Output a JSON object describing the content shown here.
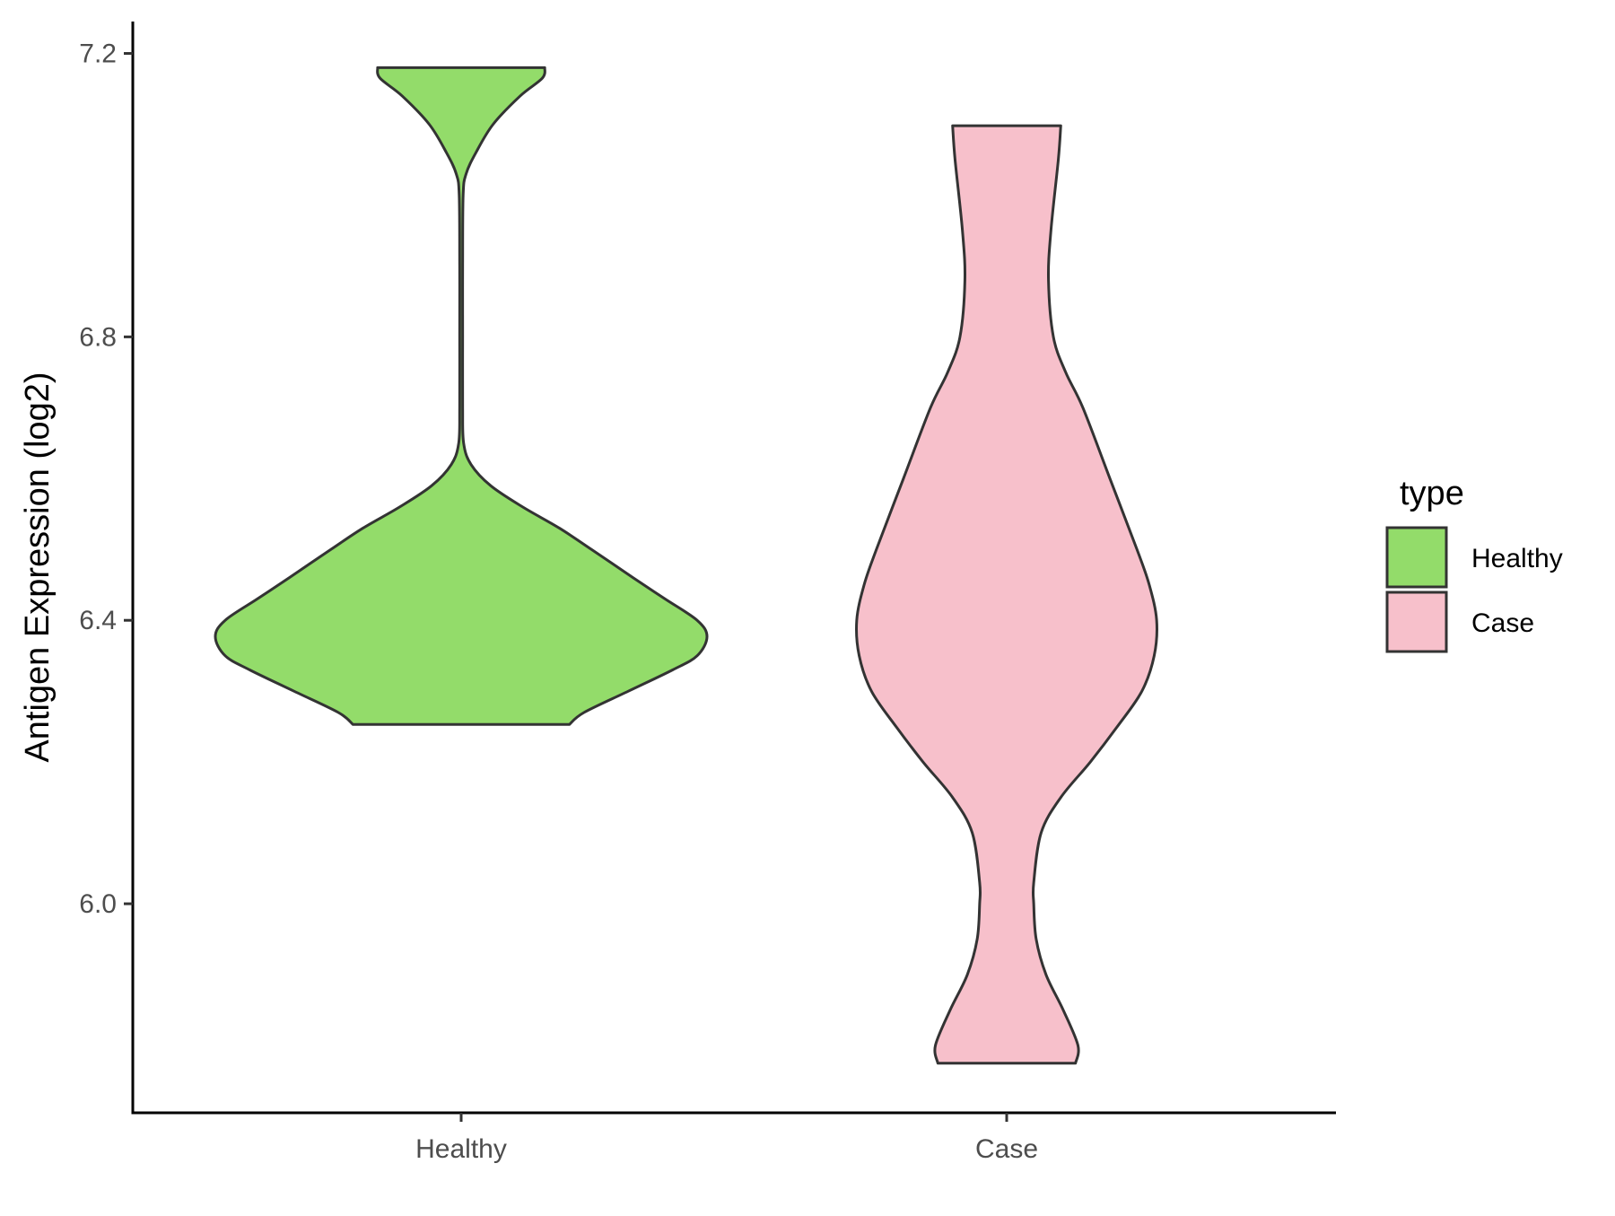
{
  "chart_data": {
    "type": "violin",
    "categories": [
      "Healthy",
      "Case"
    ],
    "ylabel": "Antigen Expression (log2)",
    "xlabel": "",
    "ylim": [
      5.705,
      7.245
    ],
    "yticks": [
      6.0,
      6.4,
      6.8,
      7.2
    ],
    "ytick_labels": [
      "6.0",
      "6.4",
      "6.8",
      "7.2"
    ],
    "grid": false,
    "legend": {
      "title": "type",
      "position": "right",
      "entries": [
        {
          "label": "Healthy",
          "color": "#93DC6A"
        },
        {
          "label": "Case",
          "color": "#F7C0CB"
        }
      ]
    },
    "series": [
      {
        "name": "Healthy",
        "color": "#93DC6A",
        "min": 6.253,
        "max": 7.18,
        "density": [
          [
            6.253,
            0.44
          ],
          [
            6.27,
            0.5
          ],
          [
            6.3,
            0.68
          ],
          [
            6.33,
            0.86
          ],
          [
            6.35,
            0.96
          ],
          [
            6.377,
            1.0
          ],
          [
            6.4,
            0.96
          ],
          [
            6.43,
            0.83
          ],
          [
            6.46,
            0.7
          ],
          [
            6.5,
            0.53
          ],
          [
            6.53,
            0.4
          ],
          [
            6.56,
            0.25
          ],
          [
            6.59,
            0.12
          ],
          [
            6.62,
            0.04
          ],
          [
            6.65,
            0.01
          ],
          [
            6.7,
            0.006
          ],
          [
            6.8,
            0.006
          ],
          [
            6.9,
            0.006
          ],
          [
            7.0,
            0.008
          ],
          [
            7.03,
            0.02
          ],
          [
            7.06,
            0.06
          ],
          [
            7.1,
            0.13
          ],
          [
            7.14,
            0.24
          ],
          [
            7.165,
            0.33
          ],
          [
            7.18,
            0.34
          ]
        ]
      },
      {
        "name": "Case",
        "color": "#F7C0CB",
        "min": 5.775,
        "max": 7.098,
        "density": [
          [
            5.775,
            0.28
          ],
          [
            5.8,
            0.29
          ],
          [
            5.85,
            0.23
          ],
          [
            5.9,
            0.16
          ],
          [
            5.95,
            0.12
          ],
          [
            6.0,
            0.11
          ],
          [
            6.03,
            0.11
          ],
          [
            6.1,
            0.14
          ],
          [
            6.15,
            0.22
          ],
          [
            6.2,
            0.34
          ],
          [
            6.25,
            0.45
          ],
          [
            6.3,
            0.55
          ],
          [
            6.35,
            0.6
          ],
          [
            6.4,
            0.61
          ],
          [
            6.45,
            0.58
          ],
          [
            6.5,
            0.53
          ],
          [
            6.6,
            0.42
          ],
          [
            6.7,
            0.31
          ],
          [
            6.75,
            0.24
          ],
          [
            6.8,
            0.19
          ],
          [
            6.88,
            0.17
          ],
          [
            6.95,
            0.18
          ],
          [
            7.05,
            0.21
          ],
          [
            7.098,
            0.22
          ]
        ]
      }
    ]
  }
}
